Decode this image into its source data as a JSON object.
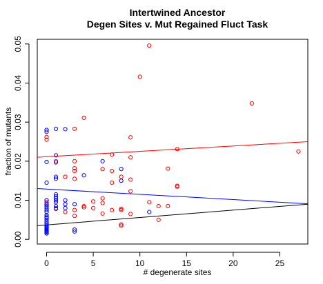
{
  "chart_data": {
    "type": "scatter",
    "title": "Intertwined Ancestor",
    "subtitle": "Degen Sites v. Mut Regained Fluct Task",
    "xlabel": "# degenerate sites",
    "ylabel": "fraction of mutants",
    "xlim": [
      -1,
      28
    ],
    "ylim": [
      -0.0012,
      0.0512
    ],
    "x_ticks": [
      0,
      5,
      10,
      15,
      20,
      25
    ],
    "y_ticks": [
      0.0,
      0.01,
      0.02,
      0.03,
      0.04,
      0.05
    ],
    "x_tick_labels": [
      "0",
      "5",
      "10",
      "15",
      "20",
      "25"
    ],
    "y_tick_labels": [
      "0.00",
      "0.01",
      "0.02",
      "0.03",
      "0.04",
      "0.05"
    ],
    "grid": false,
    "legend": "none",
    "series": [
      {
        "color": "#ff0000",
        "marker": "open-circle",
        "points": [
          [
            0,
            0.0262
          ],
          [
            0,
            0.0255
          ],
          [
            0,
            0.01
          ],
          [
            0,
            0.0095
          ],
          [
            0,
            0.009
          ],
          [
            1,
            0.02
          ],
          [
            1,
            0.008
          ],
          [
            2,
            0.016
          ],
          [
            2,
            0.007
          ],
          [
            3,
            0.0283
          ],
          [
            3,
            0.02
          ],
          [
            3,
            0.0182
          ],
          [
            3,
            0.0175
          ],
          [
            3,
            0.0155
          ],
          [
            3,
            0.0075
          ],
          [
            3,
            0.006
          ],
          [
            4,
            0.0311
          ],
          [
            4,
            0.0085
          ],
          [
            4,
            0.0082
          ],
          [
            5,
            0.0097
          ],
          [
            5,
            0.008
          ],
          [
            6,
            0.0105
          ],
          [
            6,
            0.0093
          ],
          [
            6,
            0.018
          ],
          [
            6,
            0.0066
          ],
          [
            7,
            0.0217
          ],
          [
            7,
            0.0175
          ],
          [
            7,
            0.0145
          ],
          [
            7,
            0.0075
          ],
          [
            8,
            0.016
          ],
          [
            8,
            0.0078
          ],
          [
            8,
            0.0075
          ],
          [
            8,
            0.0038
          ],
          [
            8,
            0.0035
          ],
          [
            9,
            0.0261
          ],
          [
            9,
            0.021
          ],
          [
            9,
            0.0153
          ],
          [
            9,
            0.0123
          ],
          [
            9,
            0.0065
          ],
          [
            10,
            0.0416
          ],
          [
            11,
            0.0496
          ],
          [
            11,
            0.0095
          ],
          [
            12,
            0.0085
          ],
          [
            12,
            0.005
          ],
          [
            13,
            0.0181
          ],
          [
            13,
            0.0085
          ],
          [
            14,
            0.0231
          ],
          [
            14,
            0.0137
          ],
          [
            14,
            0.0135
          ],
          [
            22,
            0.0348
          ],
          [
            27,
            0.0225
          ]
        ]
      },
      {
        "color": "#0000ff",
        "marker": "open-circle",
        "points": [
          [
            0,
            0.028
          ],
          [
            0,
            0.0275
          ],
          [
            0,
            0.0198
          ],
          [
            0,
            0.0145
          ],
          [
            0,
            0.01
          ],
          [
            0,
            0.009
          ],
          [
            0,
            0.0085
          ],
          [
            0,
            0.008
          ],
          [
            0,
            0.0075
          ],
          [
            0,
            0.007
          ],
          [
            0,
            0.0062
          ],
          [
            0,
            0.0058
          ],
          [
            0,
            0.0055
          ],
          [
            0,
            0.005
          ],
          [
            0,
            0.0045
          ],
          [
            0,
            0.004
          ],
          [
            0,
            0.0035
          ],
          [
            0,
            0.0032
          ],
          [
            0,
            0.003
          ],
          [
            0,
            0.0028
          ],
          [
            0,
            0.0025
          ],
          [
            0,
            0.0022
          ],
          [
            0,
            0.002
          ],
          [
            0,
            0.0018
          ],
          [
            0,
            0.0015
          ],
          [
            1,
            0.0283
          ],
          [
            1,
            0.0215
          ],
          [
            1,
            0.0197
          ],
          [
            1,
            0.016
          ],
          [
            1,
            0.0155
          ],
          [
            1,
            0.0115
          ],
          [
            1,
            0.011
          ],
          [
            1,
            0.0105
          ],
          [
            1,
            0.01
          ],
          [
            1,
            0.0095
          ],
          [
            1,
            0.0085
          ],
          [
            1,
            0.0078
          ],
          [
            2,
            0.0282
          ],
          [
            2,
            0.01
          ],
          [
            2,
            0.009
          ],
          [
            2,
            0.008
          ],
          [
            3,
            0.009
          ],
          [
            3,
            0.0025
          ],
          [
            3,
            0.002
          ],
          [
            4,
            0.0164
          ],
          [
            6,
            0.02
          ],
          [
            8,
            0.018
          ],
          [
            8,
            0.015
          ],
          [
            11,
            0.007
          ]
        ]
      }
    ],
    "fit_lines": [
      {
        "color": "#ff0000",
        "x": [
          -1,
          28
        ],
        "y": [
          0.021,
          0.025
        ]
      },
      {
        "color": "#0000ff",
        "x": [
          -1,
          28
        ],
        "y": [
          0.013,
          0.0091
        ]
      },
      {
        "color": "#000000",
        "x": [
          -1,
          28
        ],
        "y": [
          0.0035,
          0.009
        ]
      }
    ]
  }
}
